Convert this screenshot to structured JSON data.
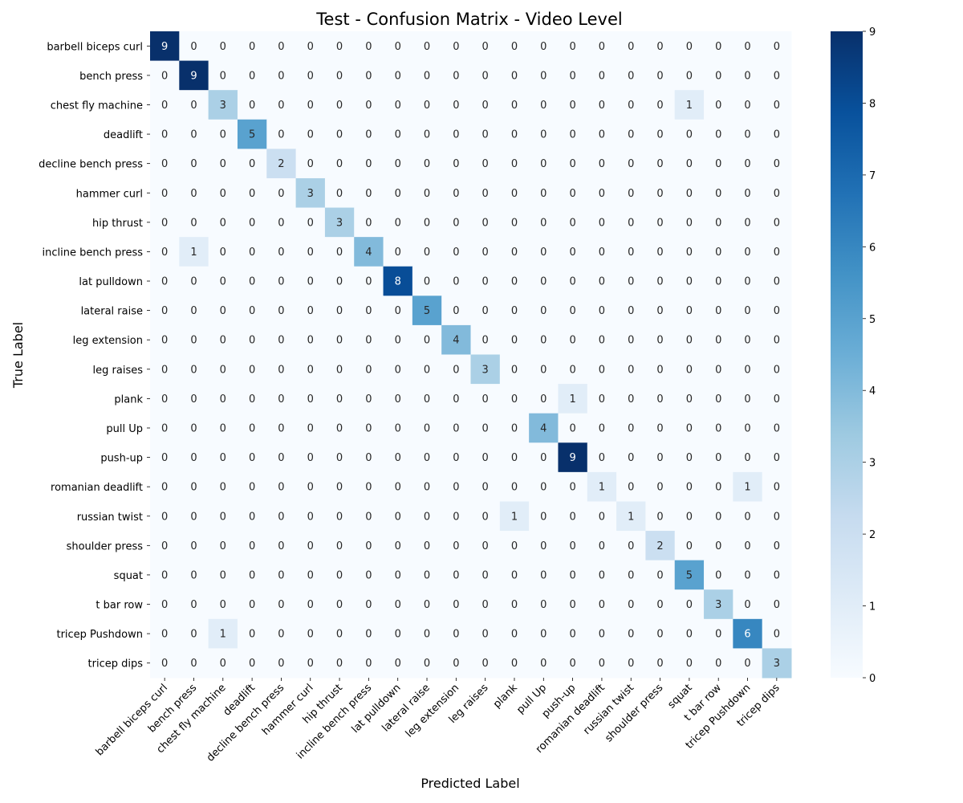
{
  "chart_data": {
    "type": "heatmap",
    "title": "Test - Confusion Matrix - Video Level",
    "xlabel": "Predicted Label",
    "ylabel": "True Label",
    "labels": [
      "barbell biceps curl",
      "bench press",
      "chest fly machine",
      "deadlift",
      "decline bench press",
      "hammer curl",
      "hip thrust",
      "incline bench press",
      "lat pulldown",
      "lateral raise",
      "leg extension",
      "leg raises",
      "plank",
      "pull Up",
      "push-up",
      "romanian deadlift",
      "russian twist",
      "shoulder press",
      "squat",
      "t bar row",
      "tricep Pushdown",
      "tricep dips"
    ],
    "matrix": [
      [
        9,
        0,
        0,
        0,
        0,
        0,
        0,
        0,
        0,
        0,
        0,
        0,
        0,
        0,
        0,
        0,
        0,
        0,
        0,
        0,
        0,
        0
      ],
      [
        0,
        9,
        0,
        0,
        0,
        0,
        0,
        0,
        0,
        0,
        0,
        0,
        0,
        0,
        0,
        0,
        0,
        0,
        0,
        0,
        0,
        0
      ],
      [
        0,
        0,
        3,
        0,
        0,
        0,
        0,
        0,
        0,
        0,
        0,
        0,
        0,
        0,
        0,
        0,
        0,
        0,
        1,
        0,
        0,
        0
      ],
      [
        0,
        0,
        0,
        5,
        0,
        0,
        0,
        0,
        0,
        0,
        0,
        0,
        0,
        0,
        0,
        0,
        0,
        0,
        0,
        0,
        0,
        0
      ],
      [
        0,
        0,
        0,
        0,
        2,
        0,
        0,
        0,
        0,
        0,
        0,
        0,
        0,
        0,
        0,
        0,
        0,
        0,
        0,
        0,
        0,
        0
      ],
      [
        0,
        0,
        0,
        0,
        0,
        3,
        0,
        0,
        0,
        0,
        0,
        0,
        0,
        0,
        0,
        0,
        0,
        0,
        0,
        0,
        0,
        0
      ],
      [
        0,
        0,
        0,
        0,
        0,
        0,
        3,
        0,
        0,
        0,
        0,
        0,
        0,
        0,
        0,
        0,
        0,
        0,
        0,
        0,
        0,
        0
      ],
      [
        0,
        1,
        0,
        0,
        0,
        0,
        0,
        4,
        0,
        0,
        0,
        0,
        0,
        0,
        0,
        0,
        0,
        0,
        0,
        0,
        0,
        0
      ],
      [
        0,
        0,
        0,
        0,
        0,
        0,
        0,
        0,
        8,
        0,
        0,
        0,
        0,
        0,
        0,
        0,
        0,
        0,
        0,
        0,
        0,
        0
      ],
      [
        0,
        0,
        0,
        0,
        0,
        0,
        0,
        0,
        0,
        5,
        0,
        0,
        0,
        0,
        0,
        0,
        0,
        0,
        0,
        0,
        0,
        0
      ],
      [
        0,
        0,
        0,
        0,
        0,
        0,
        0,
        0,
        0,
        0,
        4,
        0,
        0,
        0,
        0,
        0,
        0,
        0,
        0,
        0,
        0,
        0
      ],
      [
        0,
        0,
        0,
        0,
        0,
        0,
        0,
        0,
        0,
        0,
        0,
        3,
        0,
        0,
        0,
        0,
        0,
        0,
        0,
        0,
        0,
        0
      ],
      [
        0,
        0,
        0,
        0,
        0,
        0,
        0,
        0,
        0,
        0,
        0,
        0,
        0,
        0,
        1,
        0,
        0,
        0,
        0,
        0,
        0,
        0
      ],
      [
        0,
        0,
        0,
        0,
        0,
        0,
        0,
        0,
        0,
        0,
        0,
        0,
        0,
        4,
        0,
        0,
        0,
        0,
        0,
        0,
        0,
        0
      ],
      [
        0,
        0,
        0,
        0,
        0,
        0,
        0,
        0,
        0,
        0,
        0,
        0,
        0,
        0,
        9,
        0,
        0,
        0,
        0,
        0,
        0,
        0
      ],
      [
        0,
        0,
        0,
        0,
        0,
        0,
        0,
        0,
        0,
        0,
        0,
        0,
        0,
        0,
        0,
        1,
        0,
        0,
        0,
        0,
        1,
        0
      ],
      [
        0,
        0,
        0,
        0,
        0,
        0,
        0,
        0,
        0,
        0,
        0,
        0,
        1,
        0,
        0,
        0,
        1,
        0,
        0,
        0,
        0,
        0
      ],
      [
        0,
        0,
        0,
        0,
        0,
        0,
        0,
        0,
        0,
        0,
        0,
        0,
        0,
        0,
        0,
        0,
        0,
        2,
        0,
        0,
        0,
        0
      ],
      [
        0,
        0,
        0,
        0,
        0,
        0,
        0,
        0,
        0,
        0,
        0,
        0,
        0,
        0,
        0,
        0,
        0,
        0,
        5,
        0,
        0,
        0
      ],
      [
        0,
        0,
        0,
        0,
        0,
        0,
        0,
        0,
        0,
        0,
        0,
        0,
        0,
        0,
        0,
        0,
        0,
        0,
        0,
        3,
        0,
        0
      ],
      [
        0,
        0,
        1,
        0,
        0,
        0,
        0,
        0,
        0,
        0,
        0,
        0,
        0,
        0,
        0,
        0,
        0,
        0,
        0,
        0,
        6,
        0
      ],
      [
        0,
        0,
        0,
        0,
        0,
        0,
        0,
        0,
        0,
        0,
        0,
        0,
        0,
        0,
        0,
        0,
        0,
        0,
        0,
        0,
        0,
        3
      ]
    ],
    "color_range": [
      0,
      9
    ],
    "colorbar_ticks": [
      0,
      1,
      2,
      3,
      4,
      5,
      6,
      7,
      8,
      9
    ],
    "colormap": "Blues",
    "colormap_stops": [
      "#f7fbff",
      "#deebf7",
      "#c6dbef",
      "#9ecae1",
      "#6baed6",
      "#4292c6",
      "#2171b5",
      "#08519c",
      "#08306b"
    ],
    "grid": false
  }
}
